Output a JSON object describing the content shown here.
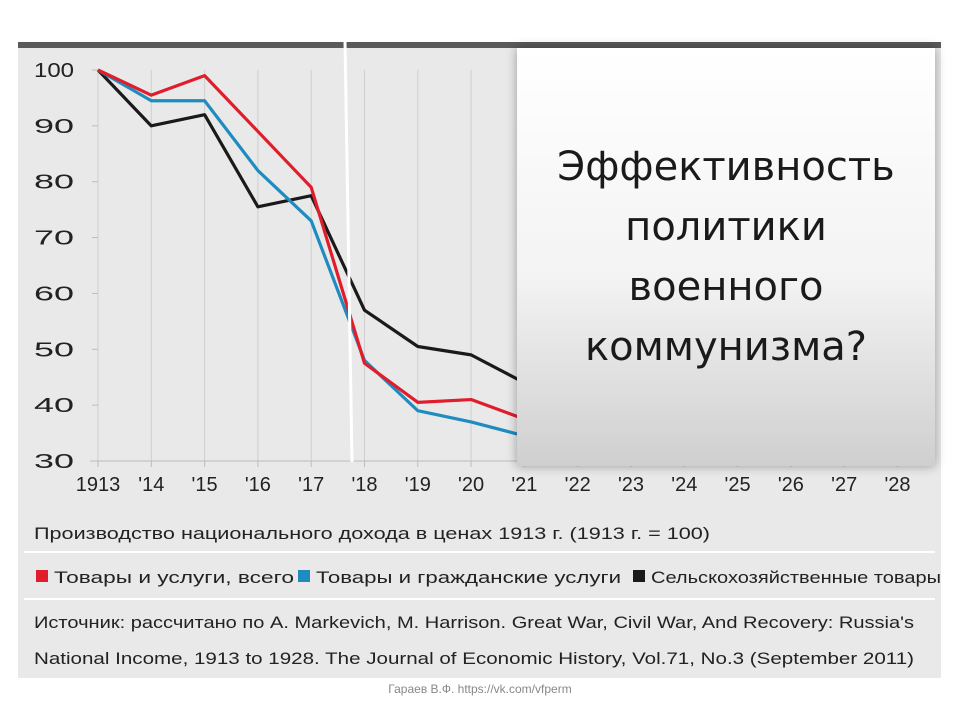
{
  "overlay": {
    "title": "Эффективность\nполитики\nвоенного\nкоммунизма?"
  },
  "footer": {
    "credit": "Гараев В.Ф. https://vk.com/vfperm"
  },
  "chart_data": {
    "type": "line",
    "xlabel": "Производство национального дохода в ценах 1913 г. (1913 г. = 100)",
    "x": [
      "1913",
      "'14",
      "'15",
      "'16",
      "'17",
      "'18",
      "'19",
      "'20",
      "'21",
      "'22",
      "'23",
      "'24",
      "'25",
      "'26",
      "'27",
      "'28"
    ],
    "yticks": [
      100,
      90,
      80,
      70,
      60,
      50,
      40,
      30
    ],
    "ylim": [
      30,
      100
    ],
    "grid": "vertical",
    "legend_position": "bottom",
    "series": [
      {
        "name": "Товары и услуги, всего",
        "color": "#e01e2b",
        "values": [
          100,
          95.5,
          99,
          89,
          79,
          47.5,
          40.5,
          41,
          37.5,
          null,
          null,
          null,
          null,
          null,
          null,
          null
        ]
      },
      {
        "name": "Товары и гражданские услуги",
        "color": "#1f8cc0",
        "values": [
          100,
          94.5,
          94.5,
          82,
          73,
          48,
          39,
          37,
          34.5,
          null,
          null,
          null,
          null,
          null,
          null,
          null
        ]
      },
      {
        "name": "Сельскохозяйственные товары",
        "color": "#1a1a1a",
        "values": [
          100,
          90,
          92,
          75.5,
          77.5,
          57,
          50.5,
          49,
          44,
          null,
          null,
          null,
          null,
          null,
          null,
          null
        ]
      }
    ],
    "source_line1": "Источник: рассчитано по A. Markevich, M. Harrison. Great War, Civil War, And Recovery: Russia's",
    "source_line2": "National Income, 1913 to 1928. The Journal of Economic History, Vol.71, No.3 (September 2011)"
  }
}
